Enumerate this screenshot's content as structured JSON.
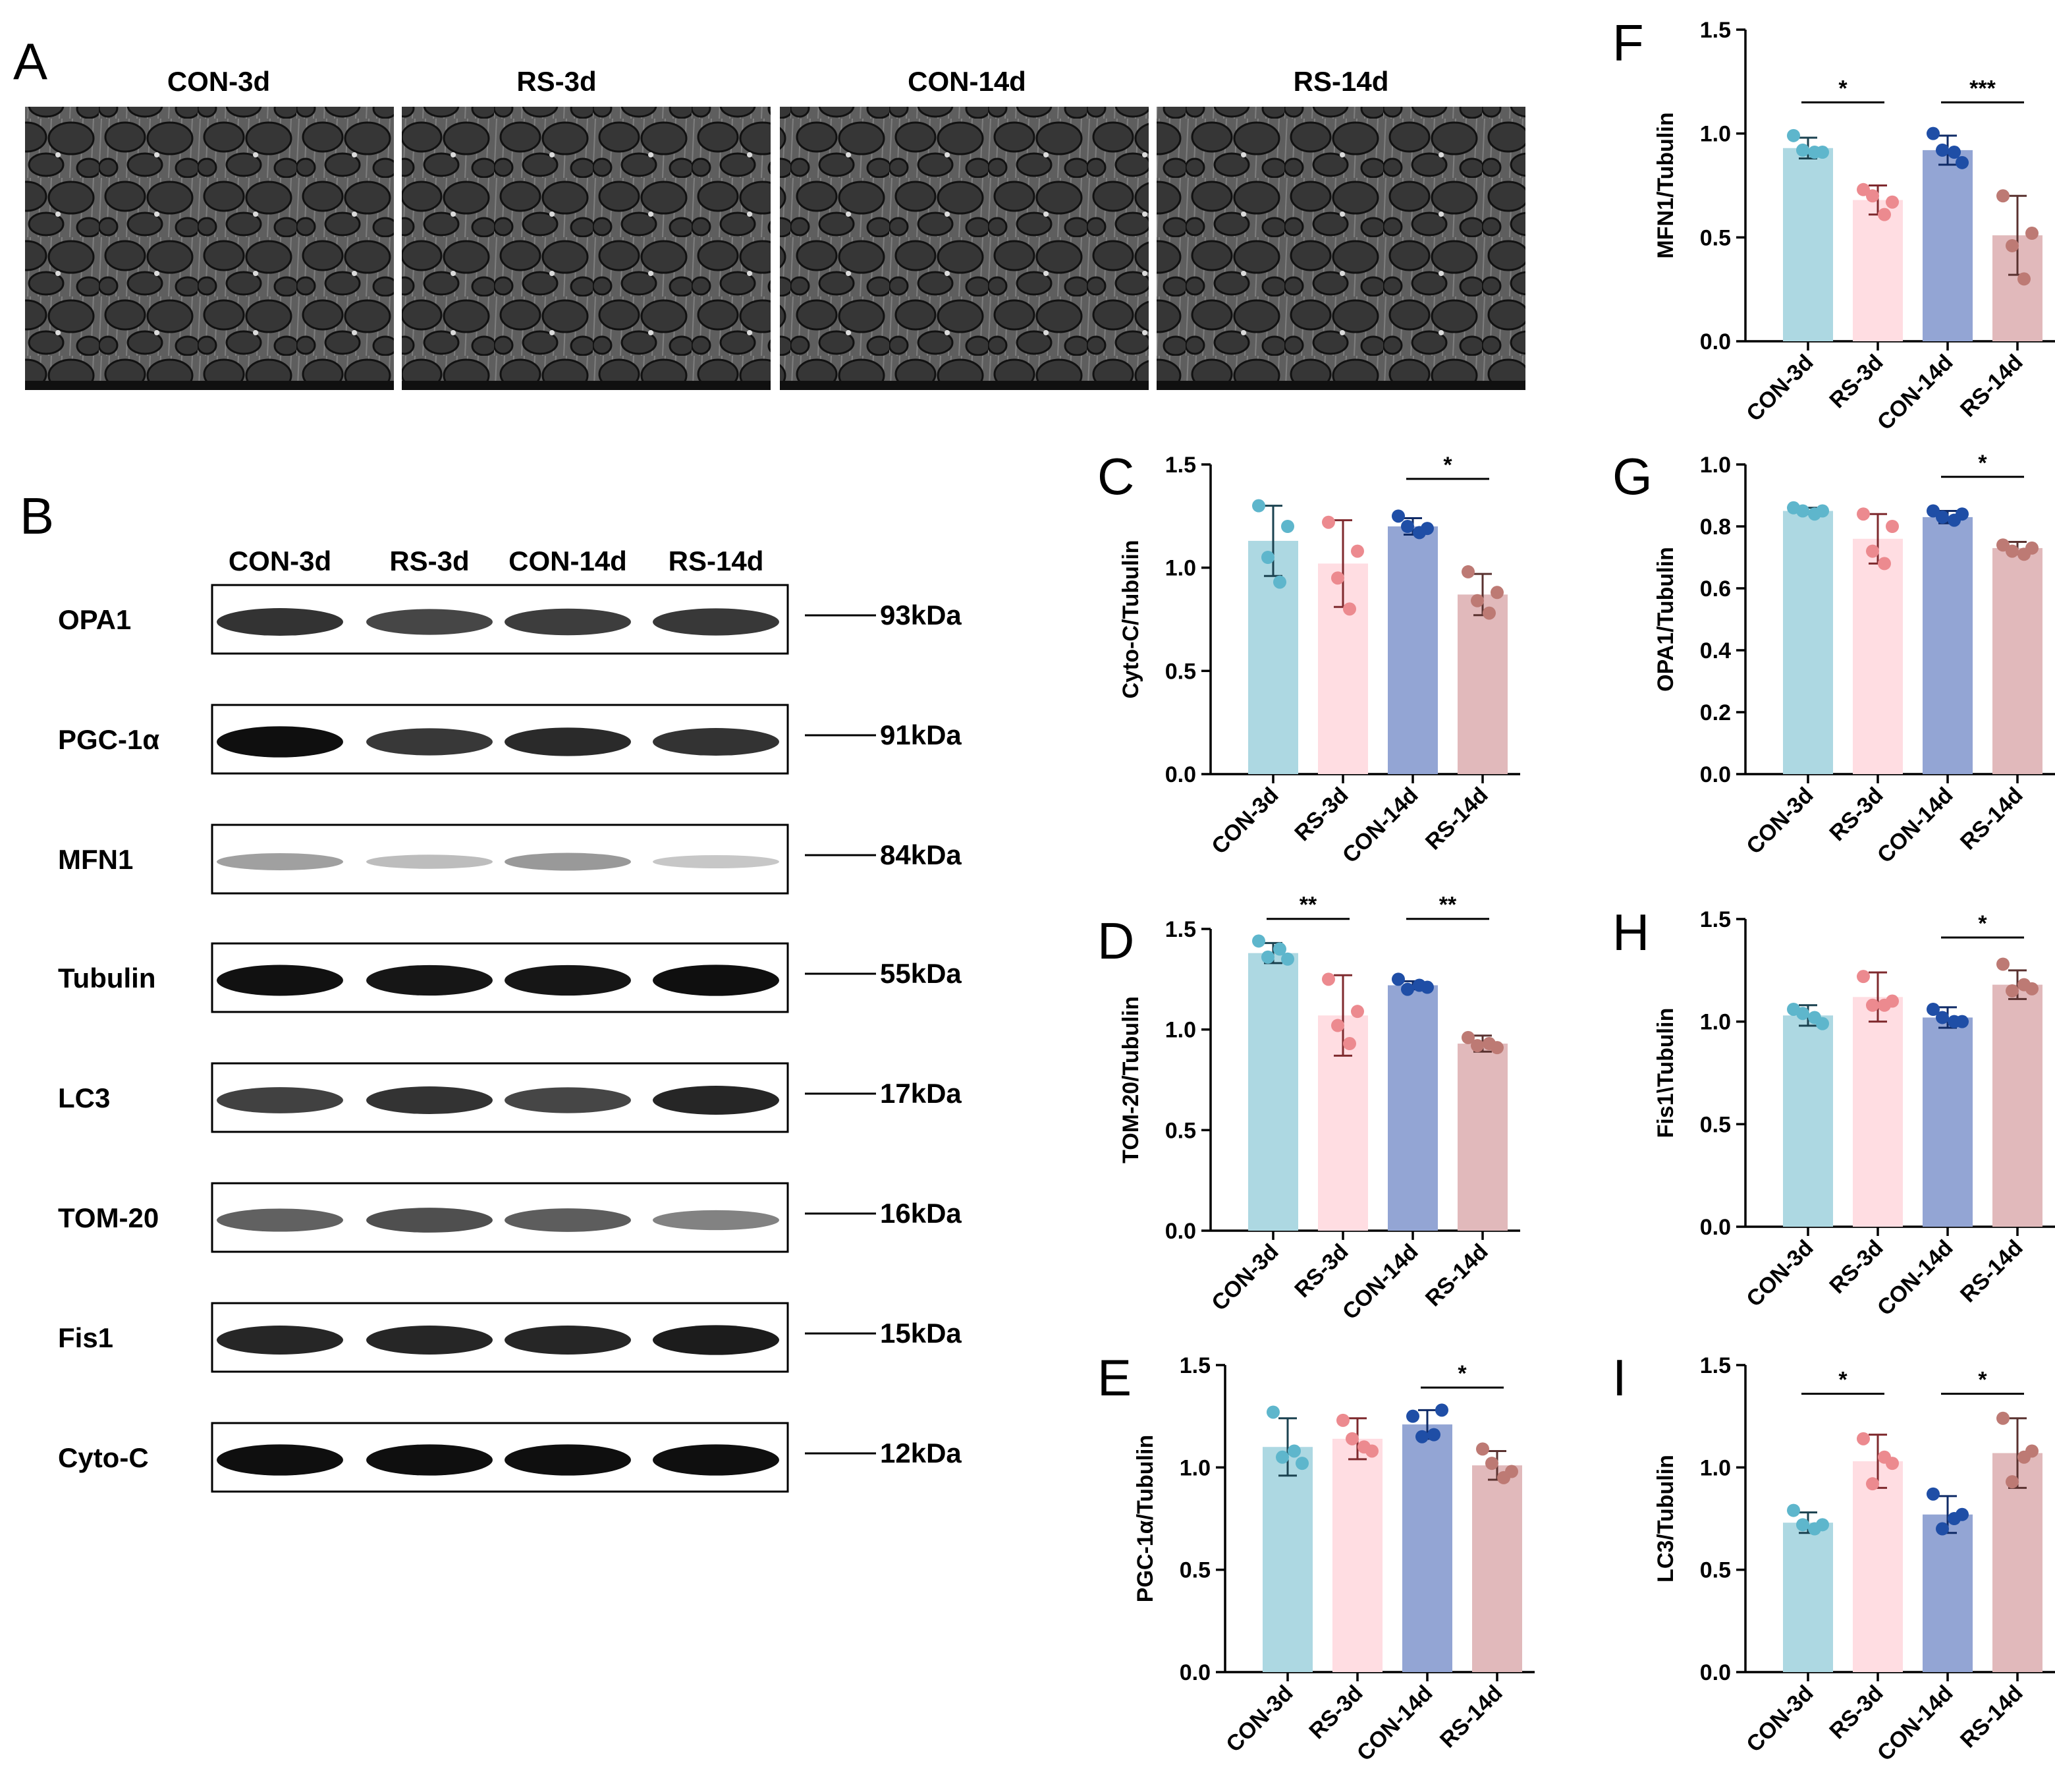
{
  "panel_letters": [
    "A",
    "B",
    "C",
    "D",
    "E",
    "F",
    "G",
    "H",
    "I"
  ],
  "panel_a": {
    "groups": [
      "CON-3d",
      "RS-3d",
      "CON-14d",
      "RS-14d"
    ]
  },
  "panel_b": {
    "lanes": [
      "CON-3d",
      "RS-3d",
      "CON-14d",
      "RS-14d"
    ],
    "bands": [
      {
        "protein": "OPA1",
        "size": "93kDa",
        "intensity": [
          0.82,
          0.74,
          0.78,
          0.8
        ]
      },
      {
        "protein": "PGC-1α",
        "size": "91kDa",
        "intensity": [
          0.98,
          0.8,
          0.86,
          0.82
        ]
      },
      {
        "protein": "MFN1",
        "size": "84kDa",
        "intensity": [
          0.35,
          0.22,
          0.38,
          0.18
        ]
      },
      {
        "protein": "Tubulin",
        "size": "55kDa",
        "intensity": [
          0.97,
          0.95,
          0.95,
          0.98
        ]
      },
      {
        "protein": "LC3",
        "size": "17kDa",
        "intensity": [
          0.76,
          0.82,
          0.74,
          0.88
        ]
      },
      {
        "protein": "TOM-20",
        "size": "16kDa",
        "intensity": [
          0.62,
          0.7,
          0.64,
          0.48
        ]
      },
      {
        "protein": "Fis1",
        "size": "15kDa",
        "intensity": [
          0.88,
          0.88,
          0.88,
          0.92
        ]
      },
      {
        "protein": "Cyto-C",
        "size": "12kDa",
        "intensity": [
          0.98,
          0.98,
          0.98,
          0.98
        ]
      }
    ]
  },
  "colors": {
    "bars": [
      "#add8e2",
      "#ffdde2",
      "#93a5d4",
      "#e1b9bb"
    ],
    "points": [
      "#5eb6cc",
      "#ec8a8f",
      "#1f4ea6",
      "#bd7a74"
    ],
    "errors": [
      "#1b4250",
      "#7f2a2e",
      "#0f2a66",
      "#5a3230"
    ]
  },
  "chart_data": [
    {
      "panel": "C",
      "type": "bar",
      "categories": [
        "CON-3d",
        "RS-3d",
        "CON-14d",
        "RS-14d"
      ],
      "ylabel": "Cyto-C/Tubulin",
      "ylim": [
        0,
        1.5
      ],
      "yticks": [
        "0.0",
        "0.5",
        "1.0",
        "1.5"
      ],
      "values": [
        1.13,
        1.02,
        1.2,
        0.87
      ],
      "errors": [
        0.17,
        0.21,
        0.04,
        0.1
      ],
      "points": [
        [
          1.3,
          1.2,
          1.05,
          0.93
        ],
        [
          1.22,
          1.08,
          0.95,
          0.8
        ],
        [
          1.25,
          1.19,
          1.2,
          1.17
        ],
        [
          0.98,
          0.88,
          0.84,
          0.78
        ]
      ],
      "significance": [
        {
          "from": 2,
          "to": 3,
          "label": "*",
          "y": 1.43
        }
      ]
    },
    {
      "panel": "D",
      "type": "bar",
      "categories": [
        "CON-3d",
        "RS-3d",
        "CON-14d",
        "RS-14d"
      ],
      "ylabel": "TOM-20/Tubulin",
      "ylim": [
        0,
        1.5
      ],
      "yticks": [
        "0.0",
        "0.5",
        "1.0",
        "1.5"
      ],
      "values": [
        1.38,
        1.07,
        1.22,
        0.93
      ],
      "errors": [
        0.05,
        0.2,
        0.02,
        0.04
      ],
      "points": [
        [
          1.44,
          1.35,
          1.36,
          1.4
        ],
        [
          1.25,
          1.09,
          1.02,
          0.93
        ],
        [
          1.25,
          1.21,
          1.2,
          1.22
        ],
        [
          0.96,
          0.91,
          0.92,
          0.93
        ]
      ],
      "significance": [
        {
          "from": 0,
          "to": 1,
          "label": "**",
          "y": 1.55
        },
        {
          "from": 2,
          "to": 3,
          "label": "**",
          "y": 1.55
        }
      ]
    },
    {
      "panel": "E",
      "type": "bar",
      "categories": [
        "CON-3d",
        "RS-3d",
        "CON-14d",
        "RS-14d"
      ],
      "ylabel": "PGC-1α/Tubulin",
      "ylim": [
        0,
        1.5
      ],
      "yticks": [
        "0.0",
        "0.5",
        "1.0",
        "1.5"
      ],
      "values": [
        1.1,
        1.14,
        1.21,
        1.01
      ],
      "errors": [
        0.14,
        0.1,
        0.07,
        0.07
      ],
      "points": [
        [
          1.27,
          1.02,
          1.05,
          1.08
        ],
        [
          1.23,
          1.08,
          1.14,
          1.1
        ],
        [
          1.25,
          1.28,
          1.15,
          1.16
        ],
        [
          1.09,
          0.98,
          1.02,
          0.95
        ]
      ],
      "significance": [
        {
          "from": 2,
          "to": 3,
          "label": "*",
          "y": 1.39
        }
      ]
    },
    {
      "panel": "F",
      "type": "bar",
      "categories": [
        "CON-3d",
        "RS-3d",
        "CON-14d",
        "RS-14d"
      ],
      "ylabel": "MFN1/Tubulin",
      "ylim": [
        0,
        1.5
      ],
      "yticks": [
        "0.0",
        "0.5",
        "1.0",
        "1.5"
      ],
      "values": [
        0.93,
        0.68,
        0.92,
        0.51
      ],
      "errors": [
        0.05,
        0.07,
        0.07,
        0.19
      ],
      "points": [
        [
          0.99,
          0.91,
          0.92,
          0.91
        ],
        [
          0.73,
          0.67,
          0.7,
          0.61
        ],
        [
          1.0,
          0.86,
          0.92,
          0.91
        ],
        [
          0.7,
          0.52,
          0.46,
          0.3
        ]
      ],
      "significance": [
        {
          "from": 0,
          "to": 1,
          "label": "*",
          "y": 1.15
        },
        {
          "from": 2,
          "to": 3,
          "label": "***",
          "y": 1.15
        }
      ]
    },
    {
      "panel": "G",
      "type": "bar",
      "categories": [
        "CON-3d",
        "RS-3d",
        "CON-14d",
        "RS-14d"
      ],
      "ylabel": "OPA1/Tubulin",
      "ylim": [
        0,
        1.0
      ],
      "yticks": [
        "0.0",
        "0.2",
        "0.4",
        "0.6",
        "0.8",
        "1.0"
      ],
      "values": [
        0.85,
        0.76,
        0.83,
        0.73
      ],
      "errors": [
        0.01,
        0.08,
        0.02,
        0.02
      ],
      "points": [
        [
          0.86,
          0.85,
          0.85,
          0.84
        ],
        [
          0.84,
          0.8,
          0.72,
          0.68
        ],
        [
          0.85,
          0.84,
          0.83,
          0.82
        ],
        [
          0.74,
          0.73,
          0.72,
          0.71
        ]
      ],
      "significance": [
        {
          "from": 2,
          "to": 3,
          "label": "*",
          "y": 0.96
        }
      ]
    },
    {
      "panel": "H",
      "type": "bar",
      "categories": [
        "CON-3d",
        "RS-3d",
        "CON-14d",
        "RS-14d"
      ],
      "ylabel": "Fis1\\Tubulin",
      "ylim": [
        0,
        1.5
      ],
      "yticks": [
        "0.0",
        "0.5",
        "1.0",
        "1.5"
      ],
      "values": [
        1.03,
        1.12,
        1.02,
        1.18
      ],
      "errors": [
        0.05,
        0.12,
        0.05,
        0.07
      ],
      "points": [
        [
          1.06,
          0.99,
          1.04,
          1.02
        ],
        [
          1.22,
          1.1,
          1.08,
          1.08
        ],
        [
          1.06,
          1.0,
          1.02,
          1.0
        ],
        [
          1.28,
          1.16,
          1.15,
          1.18
        ]
      ],
      "significance": [
        {
          "from": 2,
          "to": 3,
          "label": "*",
          "y": 1.41
        }
      ]
    },
    {
      "panel": "I",
      "type": "bar",
      "categories": [
        "CON-3d",
        "RS-3d",
        "CON-14d",
        "RS-14d"
      ],
      "ylabel": "LC3/Tubulin",
      "ylim": [
        0,
        1.5
      ],
      "yticks": [
        "0.0",
        "0.5",
        "1.0",
        "1.5"
      ],
      "values": [
        0.73,
        1.03,
        0.77,
        1.07
      ],
      "errors": [
        0.05,
        0.13,
        0.09,
        0.17
      ],
      "points": [
        [
          0.79,
          0.72,
          0.72,
          0.7
        ],
        [
          1.14,
          1.02,
          0.92,
          1.05
        ],
        [
          0.87,
          0.77,
          0.7,
          0.75
        ],
        [
          1.24,
          1.08,
          0.93,
          1.05
        ]
      ],
      "significance": [
        {
          "from": 0,
          "to": 1,
          "label": "*",
          "y": 1.36
        },
        {
          "from": 2,
          "to": 3,
          "label": "*",
          "y": 1.36
        }
      ]
    }
  ]
}
